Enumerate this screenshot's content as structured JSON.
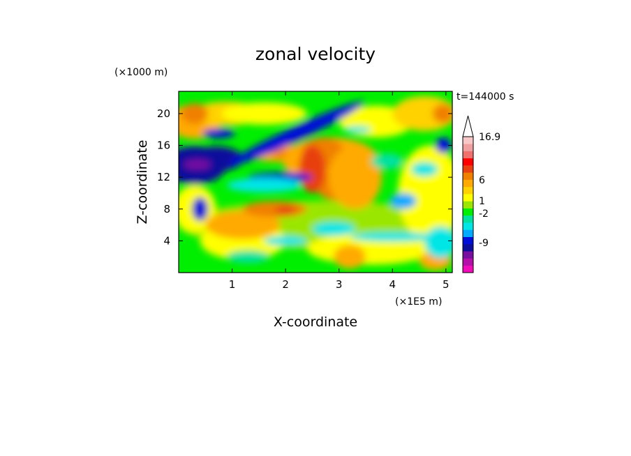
{
  "chart_data": {
    "type": "heatmap",
    "title": "zonal velocity",
    "xlabel": "X-coordinate",
    "ylabel": "Z-coordinate",
    "x_unit": "(×1E5 m)",
    "y_unit": "(×1000 m)",
    "time_label": "t=144000 s",
    "xlim": [
      0,
      5.12
    ],
    "ylim": [
      0,
      22.8
    ],
    "x_ticks": [
      1,
      2,
      3,
      4,
      5
    ],
    "y_ticks": [
      4,
      8,
      12,
      16,
      20
    ],
    "grid": false,
    "legend": "right",
    "colorbar": {
      "colors": [
        "#f00cb9",
        "#b40fa9",
        "#780fa0",
        "#0c0f9c",
        "#000fd8",
        "#00aaff",
        "#00e6e6",
        "#00e1a0",
        "#00ee00",
        "#9be600",
        "#ffff00",
        "#ffd200",
        "#ffaa00",
        "#f08000",
        "#e84010",
        "#ff0000",
        "#f07070",
        "#f0a0a0",
        "#f8c8c8"
      ],
      "labeled_values": [
        "16.9",
        "6",
        "1",
        "-2",
        "-9"
      ],
      "extend": "max"
    },
    "field_notes": [
      "blue/purple band of negative velocity across z 12-16 for x 0-1.2",
      "diagonal negative band rising from x~1.5,z~13 toward x~3,z~21",
      "positive (orange/red) plume near x~2.3-3.2, z~6-20",
      "mostly green/yellow weak values near the bottom with orange patches"
    ]
  }
}
